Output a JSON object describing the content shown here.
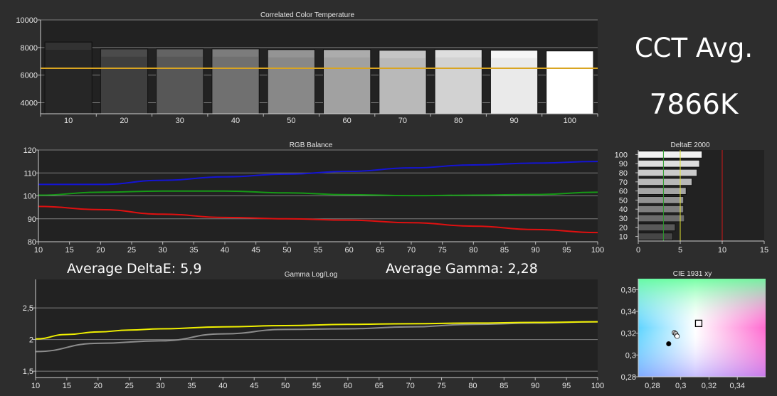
{
  "summary": {
    "cct_label": "CCT Avg.",
    "cct_value": "7866K",
    "avg_deltae": "Average DeltaE: 5,9",
    "avg_gamma": "Average Gamma: 2,28"
  },
  "colors": {
    "background": "#2d2d2d",
    "plot_bg": "#222222",
    "target_line": "#d9a521",
    "red": "#e01010",
    "green": "#169a16",
    "blue": "#1414d4",
    "gamma_measured": "#8c8c8c",
    "gamma_target": "#f0f000"
  },
  "chart_data": [
    {
      "id": "cct",
      "type": "bar",
      "title": "Correlated Color Temperature",
      "categories": [
        "10",
        "20",
        "30",
        "40",
        "50",
        "60",
        "70",
        "80",
        "90",
        "100"
      ],
      "values": [
        8400,
        7900,
        7900,
        7900,
        7850,
        7850,
        7800,
        7850,
        7800,
        7750
      ],
      "target": 6500,
      "ylim": [
        3200,
        10000
      ],
      "yticks": [
        4000,
        6000,
        8000,
        10000
      ],
      "ytick_labels": [
        "4000",
        "6000",
        "8000",
        "10000"
      ],
      "xlabel": "",
      "ylabel": "",
      "grid": true
    },
    {
      "id": "rgb",
      "type": "line",
      "title": "RGB Balance",
      "x": [
        10,
        15,
        20,
        25,
        30,
        35,
        40,
        45,
        50,
        55,
        60,
        65,
        70,
        75,
        80,
        85,
        90,
        95,
        100
      ],
      "xtick_labels": [
        "10",
        "15",
        "20",
        "25",
        "30",
        "35",
        "40",
        "45",
        "50",
        "55",
        "60",
        "65",
        "70",
        "75",
        "80",
        "85",
        "90",
        "95",
        "100"
      ],
      "ylim": [
        80,
        120
      ],
      "yticks": [
        80,
        90,
        100,
        110,
        120
      ],
      "ytick_labels": [
        "80",
        "90",
        "100",
        "110",
        "120"
      ],
      "series": [
        {
          "color": "#1414d4",
          "x": [
            10,
            20,
            30,
            40,
            50,
            60,
            70,
            80,
            90,
            100
          ],
          "values": [
            105,
            105,
            106.8,
            108.3,
            109.5,
            110.7,
            112.2,
            113.5,
            114.3,
            115
          ]
        },
        {
          "color": "#169a16",
          "x": [
            10,
            20,
            30,
            40,
            50,
            60,
            70,
            80,
            90,
            100
          ],
          "values": [
            100.3,
            101.6,
            102.1,
            102.1,
            101.3,
            100.5,
            100.1,
            100.3,
            100.6,
            101.6
          ]
        },
        {
          "color": "#e01010",
          "x": [
            10,
            20,
            30,
            40,
            50,
            60,
            70,
            80,
            90,
            100
          ],
          "values": [
            95.4,
            94,
            92,
            90.6,
            90,
            89.4,
            88.3,
            86.8,
            85.3,
            84
          ]
        }
      ],
      "grid": true
    },
    {
      "id": "gamma",
      "type": "line",
      "title": "Gamma Log/Log",
      "x": [
        10,
        15,
        20,
        25,
        30,
        35,
        40,
        45,
        50,
        55,
        60,
        65,
        70,
        75,
        80,
        85,
        90,
        95,
        100
      ],
      "xtick_labels": [
        "10",
        "15",
        "20",
        "25",
        "30",
        "35",
        "40",
        "45",
        "50",
        "55",
        "60",
        "65",
        "70",
        "75",
        "80",
        "85",
        "90",
        "95",
        "100"
      ],
      "ylim": [
        1.4,
        2.95
      ],
      "yticks": [
        1.5,
        2,
        2.5
      ],
      "ytick_labels": [
        "1,5",
        "2",
        "2,5"
      ],
      "series": [
        {
          "color": "#8c8c8c",
          "x": [
            10,
            20,
            30,
            40,
            50,
            60,
            70,
            80,
            90,
            100
          ],
          "values": [
            1.81,
            1.94,
            1.98,
            2.09,
            2.16,
            2.17,
            2.2,
            2.24,
            2.26,
            2.28
          ]
        },
        {
          "color": "#f0f000",
          "x": [
            10,
            15,
            20,
            25,
            30,
            40,
            50,
            60,
            70,
            80,
            90,
            100
          ],
          "values": [
            2.01,
            2.08,
            2.12,
            2.15,
            2.17,
            2.2,
            2.22,
            2.24,
            2.25,
            2.26,
            2.27,
            2.28
          ]
        }
      ],
      "grid": true
    },
    {
      "id": "deltae",
      "type": "bar",
      "orientation": "horizontal",
      "title": "DeltaE 2000",
      "categories": [
        "10",
        "20",
        "30",
        "40",
        "50",
        "60",
        "70",
        "80",
        "90",
        "100"
      ],
      "category_labels_shown": [
        "10",
        "20",
        "30",
        "40",
        "50",
        "60",
        "70",
        "80",
        "90",
        "100"
      ],
      "values": [
        4.1,
        4.4,
        5.5,
        5.4,
        5.4,
        5.7,
        6.4,
        7,
        7.3,
        7.6
      ],
      "xlim": [
        0,
        15
      ],
      "xticks": [
        0,
        5,
        10,
        15
      ],
      "xtick_labels": [
        "0",
        "5",
        "10",
        "15"
      ],
      "reference_lines": [
        {
          "value": 3,
          "color": "#2a9a2a"
        },
        {
          "value": 5,
          "color": "#e0e030"
        },
        {
          "value": 10,
          "color": "#d01818"
        }
      ]
    },
    {
      "id": "cie",
      "type": "scatter",
      "title": "CIE 1931 xy",
      "xlim": [
        0.27,
        0.36
      ],
      "ylim": [
        0.28,
        0.37
      ],
      "xticks": [
        0.28,
        0.3,
        0.32,
        0.34
      ],
      "xtick_labels": [
        "0,28",
        "0,3",
        "0,32",
        "0,34"
      ],
      "yticks": [
        0.28,
        0.3,
        0.32,
        0.34,
        0.36
      ],
      "ytick_labels": [
        "0,28",
        "0,3",
        "0,32",
        "0,34",
        "0,36"
      ],
      "target": {
        "x": 0.3127,
        "y": 0.329
      },
      "points": [
        {
          "x": 0.2915,
          "y": 0.3103,
          "color": "#000000"
        },
        {
          "x": 0.2955,
          "y": 0.3205,
          "color": "#bbbbbb"
        },
        {
          "x": 0.2965,
          "y": 0.3195,
          "color": "#d6d6d6"
        },
        {
          "x": 0.297,
          "y": 0.318,
          "color": "#eeeeee"
        },
        {
          "x": 0.2975,
          "y": 0.3172,
          "color": "#ffffff"
        }
      ]
    }
  ]
}
